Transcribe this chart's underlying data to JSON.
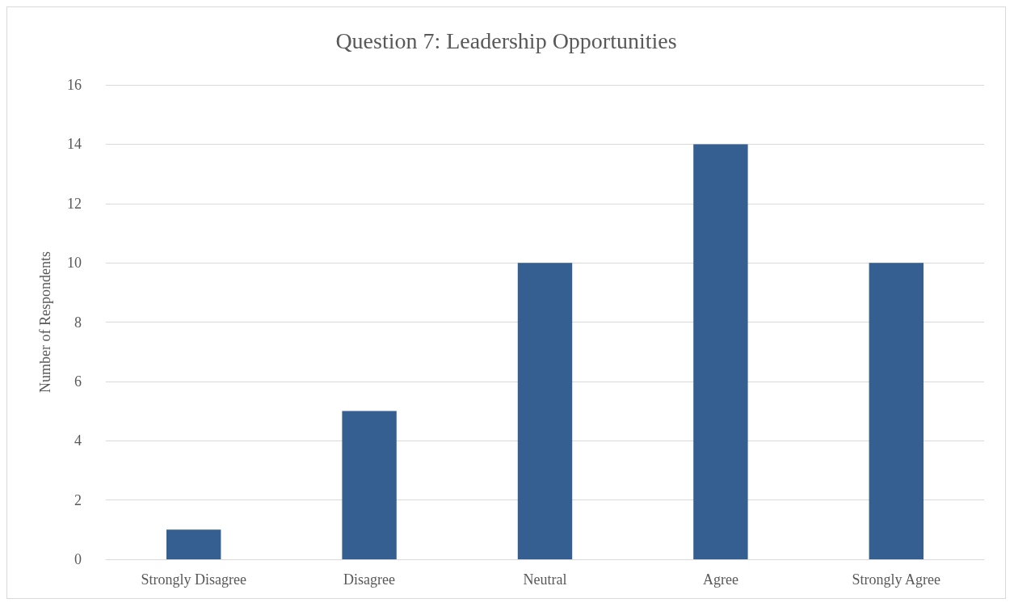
{
  "chart_data": {
    "type": "bar",
    "title": "Question 7: Leadership Opportunities",
    "ylabel": "Number of Respondents",
    "categories": [
      "Strongly Disagree",
      "Disagree",
      "Neutral",
      "Agree",
      "Strongly Agree"
    ],
    "values": [
      1,
      5,
      10,
      14,
      10
    ],
    "color": "#355f91",
    "ylim": [
      0,
      16
    ],
    "yticks": [
      0,
      2,
      4,
      6,
      8,
      10,
      12,
      14,
      16
    ],
    "grid": "y"
  }
}
